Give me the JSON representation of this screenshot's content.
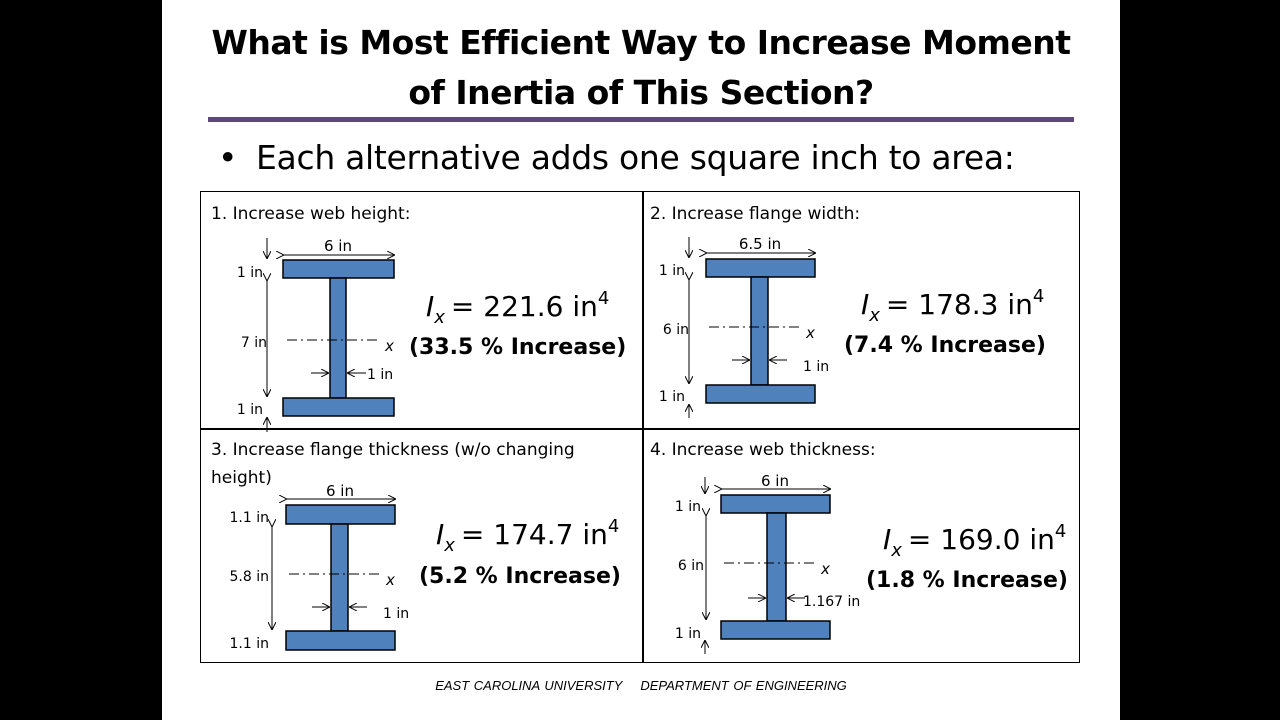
{
  "slide": {
    "title_line1": "What is Most Efficient Way to Increase Moment",
    "title_line2": "of Inertia of This Section?",
    "bullet": "Each alternative adds one square inch to area:",
    "footer_left": "EAST CAROLINA UNIVERSITY",
    "footer_right": "DEPARTMENT OF ENGINEERING"
  },
  "panels": [
    {
      "heading": "1.  Increase web height:",
      "flange_width": "6 in",
      "top_flange": "1 in",
      "web_height": "7 in",
      "web_thickness": "1 in",
      "bottom_flange": "1 in",
      "axis": "x",
      "ix_symbol": "I",
      "ix_sub": "x",
      "ix_value": "= 221.6 in",
      "ix_exp": "4",
      "increase": "(33.5 % Increase)"
    },
    {
      "heading": "2. Increase flange width:",
      "flange_width": "6.5 in",
      "top_flange": "1 in",
      "web_height": "6 in",
      "web_thickness": "1 in",
      "bottom_flange": "1 in",
      "axis": "x",
      "ix_symbol": "I",
      "ix_sub": "x",
      "ix_value": "= 178.3 in",
      "ix_exp": "4",
      "increase": "(7.4 % Increase)"
    },
    {
      "heading_line1": "3.  Increase flange thickness (w/o changing",
      "heading_line2": "height)",
      "flange_width": "6 in",
      "top_flange": "1.1 in",
      "web_height": "5.8 in",
      "web_thickness": "1 in",
      "bottom_flange": "1.1 in",
      "axis": "x",
      "ix_symbol": "I",
      "ix_sub": "x",
      "ix_value": "= 174.7 in",
      "ix_exp": "4",
      "increase": "(5.2 % Increase)"
    },
    {
      "heading": "4.  Increase web thickness:",
      "flange_width": "6 in",
      "top_flange": "1 in",
      "web_height": "6 in",
      "web_thickness": "1.167 in",
      "bottom_flange": "1 in",
      "axis": "x",
      "ix_symbol": "I",
      "ix_sub": "x",
      "ix_value": "= 169.0 in",
      "ix_exp": "4",
      "increase": "(1.8 % Increase)"
    }
  ],
  "colors": {
    "beam_fill": "#4f81bd",
    "beam_stroke": "#000000",
    "rule": "#60497a"
  }
}
